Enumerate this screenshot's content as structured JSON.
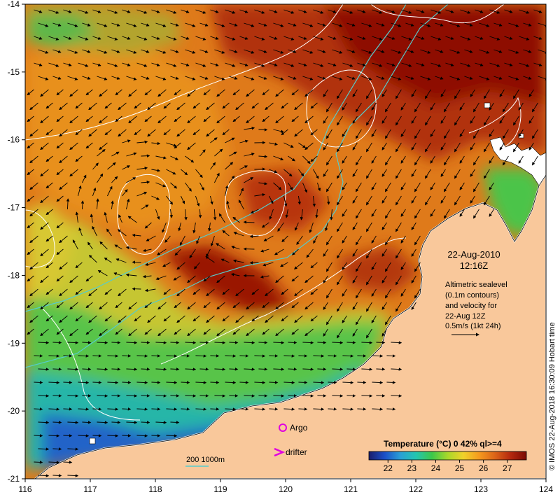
{
  "map": {
    "date": "22-Aug-2010",
    "time": "12:16Z",
    "altimetry_note": [
      "Altimetric sealevel",
      "(0.1m contours)",
      "and velocity for",
      "22-Aug 12Z",
      "0.5m/s (1kt 24h)"
    ],
    "credit": "© IMOS 22-Aug-2018 16:30:09 Hobart time",
    "legend": {
      "argo": "Argo",
      "drifter": "drifter",
      "isobath": "200  1000m"
    },
    "colorbar": {
      "title": "Temperature (°C) 0 42% ql>=4",
      "ticks": [
        "22",
        "23",
        "24",
        "25",
        "26",
        "27"
      ],
      "colors": [
        "#1b1d6b",
        "#1b4fc8",
        "#2a9fd6",
        "#24c6b0",
        "#3cc84a",
        "#a8d82a",
        "#f0d22a",
        "#f59a1e",
        "#dc6418",
        "#b4280e",
        "#7a0a04"
      ]
    },
    "axes": {
      "x_ticks": [
        "116",
        "117",
        "118",
        "119",
        "120",
        "121",
        "122",
        "123",
        "124"
      ],
      "y_ticks": [
        "-14",
        "-15",
        "-16",
        "-17",
        "-18",
        "-19",
        "-20",
        "-21"
      ],
      "lon_range": [
        116,
        124
      ],
      "lat_range": [
        -21,
        -14
      ]
    },
    "colors": {
      "land": "#f9c89b",
      "warm": "#c8460e",
      "hot": "#8e0f04",
      "mid": "#e48a1c",
      "cool_green": "#3fc64a",
      "cool_blue": "#2c6fd0",
      "contour": "#ffffff",
      "isobath": "#55cccc",
      "argo_marker": "#e000e0"
    }
  }
}
